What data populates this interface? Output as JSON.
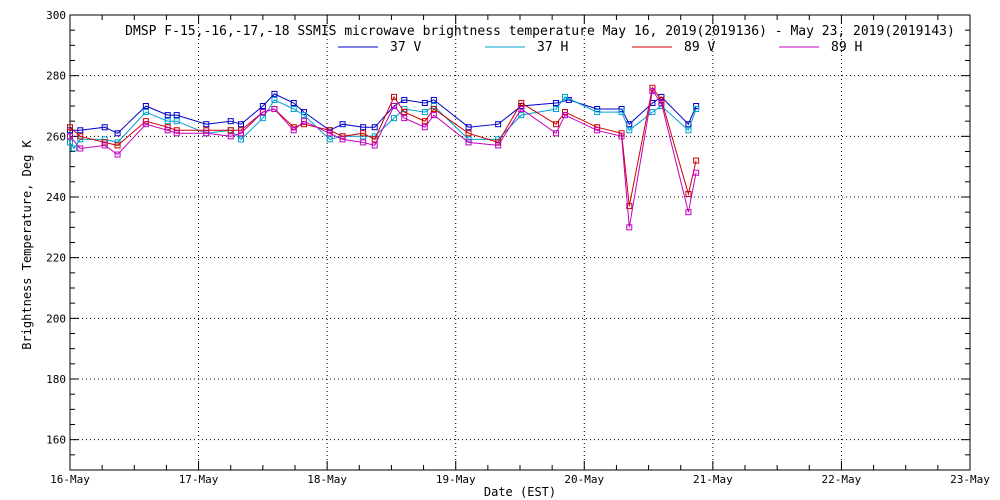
{
  "chart_data": {
    "type": "line",
    "title": "DMSP F-15,-16,-17,-18 SSMIS microwave brightness temperature May 16, 2019(2019136) - May 23, 2019(2019143)",
    "xlabel": "Date (EST)",
    "ylabel": "Brightness Temperature, Deg K",
    "xlim": [
      0,
      7
    ],
    "ylim": [
      150,
      300
    ],
    "x_ticks": [
      {
        "value": 0,
        "label": "16-May"
      },
      {
        "value": 1,
        "label": "17-May"
      },
      {
        "value": 2,
        "label": "18-May"
      },
      {
        "value": 3,
        "label": "19-May"
      },
      {
        "value": 4,
        "label": "20-May"
      },
      {
        "value": 5,
        "label": "21-May"
      },
      {
        "value": 6,
        "label": "22-May"
      },
      {
        "value": 7,
        "label": "23-May"
      }
    ],
    "y_ticks": [
      {
        "value": 160,
        "label": "160"
      },
      {
        "value": 180,
        "label": "180"
      },
      {
        "value": 200,
        "label": "200"
      },
      {
        "value": 220,
        "label": "220"
      },
      {
        "value": 240,
        "label": "240"
      },
      {
        "value": 260,
        "label": "260"
      },
      {
        "value": 280,
        "label": "280"
      },
      {
        "value": 300,
        "label": "300"
      }
    ],
    "x_minor_step": 0.25,
    "y_minor_step": 5,
    "grid": true,
    "legend_position": "top-center",
    "series": [
      {
        "name": "37 V",
        "color": "#0000c8",
        "points": [
          [
            0.0,
            262
          ],
          [
            0.08,
            262
          ],
          [
            0.27,
            263
          ],
          [
            0.37,
            261
          ],
          [
            0.59,
            270
          ],
          [
            0.76,
            267
          ],
          [
            0.83,
            267
          ],
          [
            1.06,
            264
          ],
          [
            1.25,
            265
          ],
          [
            1.33,
            264
          ],
          [
            1.5,
            270
          ],
          [
            1.59,
            274
          ],
          [
            1.74,
            271
          ],
          [
            1.82,
            268
          ],
          [
            2.02,
            262
          ],
          [
            2.12,
            264
          ],
          [
            2.28,
            263
          ],
          [
            2.37,
            263
          ],
          [
            2.52,
            270
          ],
          [
            2.6,
            272
          ],
          [
            2.76,
            271
          ],
          [
            2.83,
            272
          ],
          [
            3.1,
            263
          ],
          [
            3.33,
            264
          ],
          [
            3.51,
            270
          ],
          [
            3.78,
            271
          ],
          [
            3.88,
            272
          ],
          [
            4.1,
            269
          ],
          [
            4.29,
            269
          ],
          [
            4.35,
            264
          ],
          [
            4.53,
            271
          ],
          [
            4.6,
            273
          ],
          [
            4.81,
            264
          ],
          [
            4.87,
            270
          ]
        ]
      },
      {
        "name": "37 H",
        "color": "#00a0d0",
        "points": [
          [
            0.0,
            258
          ],
          [
            0.03,
            256
          ],
          [
            0.08,
            259
          ],
          [
            0.27,
            259
          ],
          [
            0.37,
            258
          ],
          [
            0.59,
            268
          ],
          [
            0.76,
            265
          ],
          [
            0.83,
            265
          ],
          [
            1.06,
            261
          ],
          [
            1.25,
            262
          ],
          [
            1.33,
            259
          ],
          [
            1.5,
            266
          ],
          [
            1.59,
            272
          ],
          [
            1.74,
            269
          ],
          [
            1.82,
            267
          ],
          [
            2.02,
            259
          ],
          [
            2.12,
            260
          ],
          [
            2.28,
            260
          ],
          [
            2.37,
            260
          ],
          [
            2.52,
            266
          ],
          [
            2.6,
            269
          ],
          [
            2.76,
            268
          ],
          [
            2.83,
            270
          ],
          [
            3.1,
            259
          ],
          [
            3.33,
            259
          ],
          [
            3.51,
            267
          ],
          [
            3.78,
            269
          ],
          [
            3.85,
            273
          ],
          [
            4.1,
            268
          ],
          [
            4.29,
            268
          ],
          [
            4.35,
            262
          ],
          [
            4.53,
            268
          ],
          [
            4.6,
            270
          ],
          [
            4.81,
            262
          ],
          [
            4.87,
            269
          ]
        ]
      },
      {
        "name": "89 V",
        "color": "#d00000",
        "points": [
          [
            0.0,
            263
          ],
          [
            0.08,
            260
          ],
          [
            0.27,
            258
          ],
          [
            0.37,
            257
          ],
          [
            0.59,
            265
          ],
          [
            0.76,
            263
          ],
          [
            0.83,
            262
          ],
          [
            1.06,
            262
          ],
          [
            1.25,
            262
          ],
          [
            1.33,
            262
          ],
          [
            1.5,
            268
          ],
          [
            1.59,
            269
          ],
          [
            1.74,
            263
          ],
          [
            1.82,
            264
          ],
          [
            2.02,
            262
          ],
          [
            2.12,
            260
          ],
          [
            2.28,
            261
          ],
          [
            2.37,
            259
          ],
          [
            2.52,
            273
          ],
          [
            2.6,
            268
          ],
          [
            2.76,
            265
          ],
          [
            2.83,
            269
          ],
          [
            3.1,
            261
          ],
          [
            3.33,
            258
          ],
          [
            3.51,
            271
          ],
          [
            3.78,
            264
          ],
          [
            3.85,
            268
          ],
          [
            4.1,
            263
          ],
          [
            4.29,
            261
          ],
          [
            4.35,
            237
          ],
          [
            4.53,
            276
          ],
          [
            4.6,
            272
          ],
          [
            4.81,
            241
          ],
          [
            4.87,
            252
          ]
        ]
      },
      {
        "name": "89 H",
        "color": "#c000c0",
        "points": [
          [
            0.0,
            260
          ],
          [
            0.08,
            256
          ],
          [
            0.27,
            257
          ],
          [
            0.37,
            254
          ],
          [
            0.59,
            264
          ],
          [
            0.76,
            262
          ],
          [
            0.83,
            261
          ],
          [
            1.06,
            261
          ],
          [
            1.25,
            260
          ],
          [
            1.33,
            261
          ],
          [
            1.5,
            268
          ],
          [
            1.59,
            269
          ],
          [
            1.74,
            262
          ],
          [
            1.82,
            265
          ],
          [
            2.02,
            261
          ],
          [
            2.12,
            259
          ],
          [
            2.28,
            258
          ],
          [
            2.37,
            257
          ],
          [
            2.52,
            270
          ],
          [
            2.6,
            266
          ],
          [
            2.76,
            263
          ],
          [
            2.83,
            267
          ],
          [
            3.1,
            258
          ],
          [
            3.33,
            257
          ],
          [
            3.51,
            269
          ],
          [
            3.78,
            261
          ],
          [
            3.85,
            267
          ],
          [
            4.1,
            262
          ],
          [
            4.29,
            260
          ],
          [
            4.35,
            230
          ],
          [
            4.53,
            275
          ],
          [
            4.6,
            271
          ],
          [
            4.81,
            235
          ],
          [
            4.87,
            248
          ]
        ]
      }
    ]
  }
}
